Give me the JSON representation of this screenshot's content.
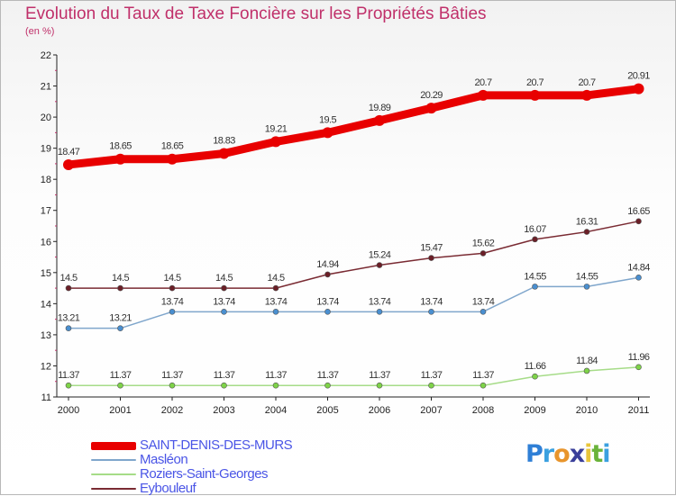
{
  "title": "Evolution du Taux de Taxe Foncière sur les Propriétés Bâties",
  "unit_label": "(en %)",
  "logo": {
    "letters": [
      {
        "ch": "P",
        "color": "#2f7fd6"
      },
      {
        "ch": "r",
        "color": "#3aa0e0"
      },
      {
        "ch": "o",
        "color": "#e8952c"
      },
      {
        "ch": "x",
        "color": "#3a3f9a"
      },
      {
        "ch": "i",
        "color": "#e8c53a"
      },
      {
        "ch": "t",
        "color": "#6ab33a"
      },
      {
        "ch": "i",
        "color": "#3aa0e0"
      }
    ]
  },
  "chart_data": {
    "type": "line",
    "title": "Evolution du Taux de Taxe Foncière sur les Propriétés Bâties",
    "ylabel": "(en %)",
    "xlabel": "",
    "ylim": [
      11,
      22
    ],
    "yticks": [
      "11",
      "12",
      "13",
      "14",
      "15",
      "16",
      "17",
      "18",
      "19",
      "20",
      "21",
      "22"
    ],
    "categories": [
      "2000",
      "2001",
      "2002",
      "2003",
      "2004",
      "2005",
      "2006",
      "2007",
      "2008",
      "2009",
      "2010",
      "2011"
    ],
    "series": [
      {
        "name": "SAINT-DENIS-DES-MURS",
        "color": "#e80000",
        "marker_color": "#e80000",
        "emphasis": "thick",
        "values": [
          18.47,
          18.65,
          18.65,
          18.83,
          19.21,
          19.5,
          19.89,
          20.29,
          20.7,
          20.7,
          20.7,
          20.91
        ],
        "labels": [
          "18.47",
          "18.65",
          "18.65",
          "18.83",
          "19.21",
          "19.5",
          "19.89",
          "20.29",
          "20.7",
          "20.7",
          "20.7",
          "20.91"
        ]
      },
      {
        "name": "Masléon",
        "color": "#7fa6cc",
        "marker_color": "#4a8fd0",
        "emphasis": "thin",
        "values": [
          13.21,
          13.21,
          13.74,
          13.74,
          13.74,
          13.74,
          13.74,
          13.74,
          13.74,
          14.55,
          14.55,
          14.84
        ],
        "labels": [
          "13.21",
          "13.21",
          "13.74",
          "13.74",
          "13.74",
          "13.74",
          "13.74",
          "13.74",
          "13.74",
          "14.55",
          "14.55",
          "14.84"
        ]
      },
      {
        "name": "Roziers-Saint-Georges",
        "color": "#a6dc88",
        "marker_color": "#7ed348",
        "emphasis": "thin",
        "values": [
          11.37,
          11.37,
          11.37,
          11.37,
          11.37,
          11.37,
          11.37,
          11.37,
          11.37,
          11.66,
          11.84,
          11.96
        ],
        "labels": [
          "11.37",
          "11.37",
          "11.37",
          "11.37",
          "11.37",
          "11.37",
          "11.37",
          "11.37",
          "11.37",
          "11.66",
          "11.84",
          "11.96"
        ]
      },
      {
        "name": "Eybouleuf",
        "color": "#7a2b33",
        "marker_color": "#6b1f27",
        "emphasis": "thin",
        "values": [
          14.5,
          14.5,
          14.5,
          14.5,
          14.5,
          14.94,
          15.24,
          15.47,
          15.62,
          16.07,
          16.31,
          16.65
        ],
        "labels": [
          "14.5",
          "14.5",
          "14.5",
          "14.5",
          "14.5",
          "14.94",
          "15.24",
          "15.47",
          "15.62",
          "16.07",
          "16.31",
          "16.65"
        ]
      }
    ],
    "grid": false,
    "legend": "bottom-left"
  }
}
